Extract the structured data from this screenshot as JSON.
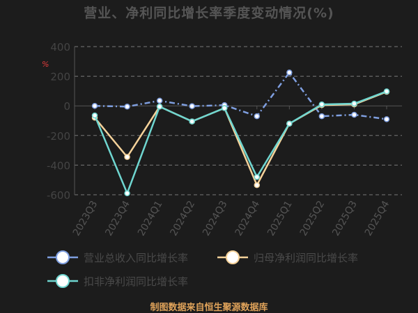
{
  "chart_data": {
    "type": "line",
    "title": "营业、净利同比增长率季度变动情况(%)",
    "unit_label": "%",
    "categories": [
      "2023Q3",
      "2023Q4",
      "2024Q1",
      "2024Q2",
      "2024Q3",
      "2024Q4",
      "2025Q1",
      "2025Q2",
      "2025Q3",
      "2025Q4"
    ],
    "y_ticks": [
      400,
      200,
      0,
      -200,
      -400,
      -600
    ],
    "ylim": [
      -600,
      400
    ],
    "grid": true,
    "legend_position": "bottom",
    "series": [
      {
        "name": "营业总收入同比增长率",
        "color": "#7f9fe0",
        "dash": "8,4,2,4",
        "values": [
          0,
          -5,
          35,
          -2,
          5,
          -70,
          225,
          -70,
          -60,
          -90
        ]
      },
      {
        "name": "归母净利润同比增长率",
        "color": "#f5d29a",
        "dash": "",
        "values": [
          -80,
          -345,
          -5,
          -105,
          -15,
          -535,
          -120,
          5,
          10,
          95
        ]
      },
      {
        "name": "扣非净利润同比增长率",
        "color": "#6fd6d0",
        "dash": "",
        "values": [
          -65,
          -590,
          -5,
          -105,
          -15,
          -480,
          -120,
          10,
          15,
          98
        ]
      }
    ]
  },
  "footer": "制图数据来自恒生聚源数据库"
}
